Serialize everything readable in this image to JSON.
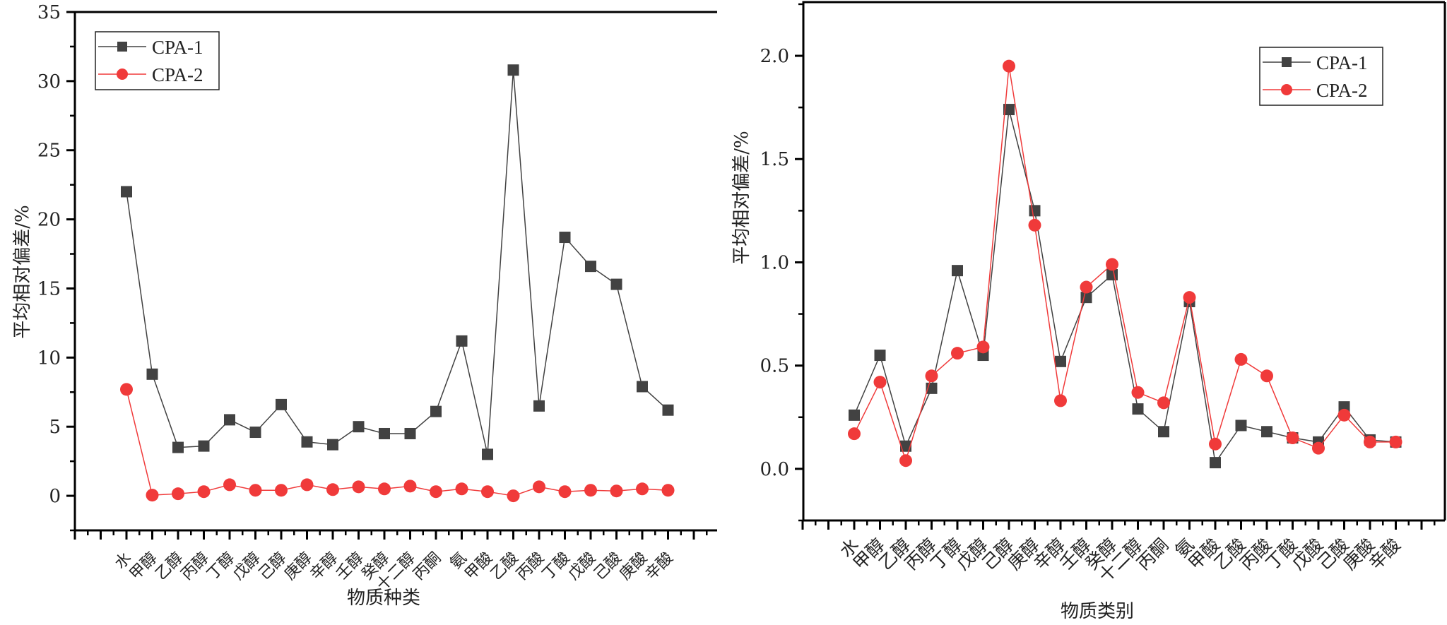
{
  "chart_data": [
    {
      "type": "line",
      "title": "",
      "xlabel": "物质种类",
      "ylabel": "平均相对偏差/%",
      "ylim": [
        -2.5,
        35
      ],
      "yticks": [
        "0",
        "5",
        "10",
        "15",
        "20",
        "25",
        "30",
        "35"
      ],
      "ytick_values": [
        0,
        5,
        10,
        15,
        20,
        25,
        30,
        35
      ],
      "grid": false,
      "legend_position": "top-left",
      "categories": [
        "水",
        "甲醇",
        "乙醇",
        "丙醇",
        "丁醇",
        "戊醇",
        "己醇",
        "庚醇",
        "辛醇",
        "壬醇",
        "癸醇",
        "十二醇",
        "丙酮",
        "氨",
        "甲酸",
        "乙酸",
        "丙酸",
        "丁酸",
        "戊酸",
        "己酸",
        "庚酸",
        "辛酸"
      ],
      "series": [
        {
          "name": "CPA-1",
          "marker": "square",
          "color": "#424242",
          "values": [
            22.0,
            8.8,
            3.5,
            3.6,
            5.5,
            4.6,
            6.6,
            3.9,
            3.7,
            5.0,
            4.5,
            4.5,
            6.1,
            11.2,
            3.0,
            30.8,
            6.5,
            18.7,
            16.6,
            15.3,
            7.9,
            6.2
          ]
        },
        {
          "name": "CPA-2",
          "marker": "circle",
          "color": "#f03a3a",
          "values": [
            7.7,
            0.05,
            0.15,
            0.3,
            0.8,
            0.4,
            0.4,
            0.8,
            0.45,
            0.65,
            0.5,
            0.7,
            0.3,
            0.5,
            0.3,
            0.0,
            0.65,
            0.3,
            0.4,
            0.35,
            0.5,
            0.4
          ]
        }
      ]
    },
    {
      "type": "line",
      "title": "",
      "xlabel": "物质类别",
      "ylabel": "平均相对偏差/%",
      "ylim": [
        -0.25,
        2.26
      ],
      "yticks": [
        "0.0",
        "0.5",
        "1.0",
        "1.5",
        "2.0"
      ],
      "ytick_values": [
        0.0,
        0.5,
        1.0,
        1.5,
        2.0
      ],
      "grid": false,
      "legend_position": "top-right",
      "categories": [
        "水",
        "甲醇",
        "乙醇",
        "丙醇",
        "丁醇",
        "戊醇",
        "己醇",
        "庚醇",
        "辛醇",
        "壬醇",
        "癸醇",
        "十二醇",
        "丙酮",
        "氨",
        "甲酸",
        "乙酸",
        "丙酸",
        "丁酸",
        "戊酸",
        "己酸",
        "庚酸",
        "辛酸"
      ],
      "series": [
        {
          "name": "CPA-1",
          "marker": "square",
          "color": "#424242",
          "values": [
            0.26,
            0.55,
            0.11,
            0.39,
            0.96,
            0.55,
            1.74,
            1.25,
            0.52,
            0.83,
            0.94,
            0.29,
            0.18,
            0.81,
            0.03,
            0.21,
            0.18,
            0.15,
            0.13,
            0.3,
            0.14,
            0.13
          ]
        },
        {
          "name": "CPA-2",
          "marker": "circle",
          "color": "#f03a3a",
          "values": [
            0.17,
            0.42,
            0.04,
            0.45,
            0.56,
            0.59,
            1.95,
            1.18,
            0.33,
            0.88,
            0.99,
            0.37,
            0.32,
            0.83,
            0.12,
            0.53,
            0.45,
            0.15,
            0.1,
            0.26,
            0.13,
            0.13
          ]
        }
      ]
    }
  ]
}
